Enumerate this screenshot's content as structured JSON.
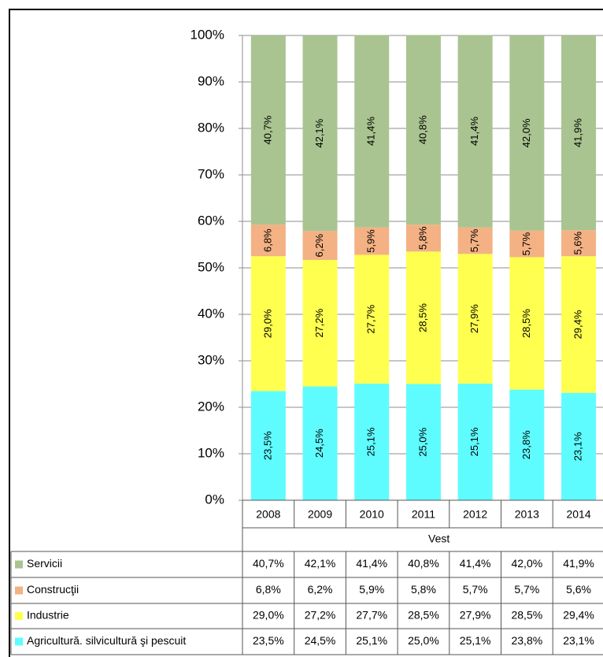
{
  "chart_data": {
    "type": "stacked_bar",
    "categories": [
      "2008",
      "2009",
      "2010",
      "2011",
      "2012",
      "2013",
      "2014"
    ],
    "xlabel": "Vest",
    "ylim": [
      0,
      100
    ],
    "yticks": [
      {
        "value": 0,
        "label": "0%"
      },
      {
        "value": 10,
        "label": "10%"
      },
      {
        "value": 20,
        "label": "20%"
      },
      {
        "value": 30,
        "label": "30%"
      },
      {
        "value": 40,
        "label": "40%"
      },
      {
        "value": 50,
        "label": "50%"
      },
      {
        "value": 60,
        "label": "60%"
      },
      {
        "value": 70,
        "label": "70%"
      },
      {
        "value": 80,
        "label": "80%"
      },
      {
        "value": 90,
        "label": "90%"
      },
      {
        "value": 100,
        "label": "100%"
      }
    ],
    "grid": true,
    "series": [
      {
        "name": "Agricultură. silvicultură şi pescuit",
        "color": "#5ffcff",
        "values": [
          23.5,
          24.5,
          25.1,
          25.0,
          25.1,
          23.8,
          23.1
        ],
        "value_labels": [
          "23,5%",
          "24,5%",
          "25,1%",
          "25,0%",
          "25,1%",
          "23,8%",
          "23,1%"
        ]
      },
      {
        "name": "Industrie",
        "color": "#ffff50",
        "values": [
          29.0,
          27.2,
          27.7,
          28.5,
          27.9,
          28.5,
          29.4
        ],
        "value_labels": [
          "29,0%",
          "27,2%",
          "27,7%",
          "28,5%",
          "27,9%",
          "28,5%",
          "29,4%"
        ]
      },
      {
        "name": "Construcţii",
        "color": "#f4b183",
        "values": [
          6.8,
          6.2,
          5.9,
          5.8,
          5.7,
          5.7,
          5.6
        ],
        "value_labels": [
          "6,8%",
          "6,2%",
          "5,9%",
          "5,8%",
          "5,7%",
          "5,7%",
          "5,6%"
        ]
      },
      {
        "name": "Servicii",
        "color": "#a9c490",
        "values": [
          40.7,
          42.1,
          41.4,
          40.8,
          41.4,
          42.0,
          41.9
        ],
        "value_labels": [
          "40,7%",
          "42,1%",
          "41,4%",
          "40,8%",
          "41,4%",
          "42,0%",
          "41,9%"
        ]
      }
    ]
  }
}
